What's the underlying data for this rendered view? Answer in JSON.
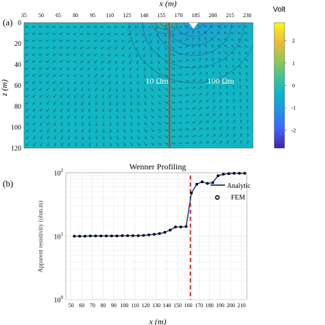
{
  "chart_data": [
    {
      "type": "heatmap",
      "panel_label": "(a)",
      "xlabel": "x (m)",
      "ylabel": "z (m)",
      "x_ticks": [
        35,
        50,
        65,
        80,
        95,
        110,
        125,
        140,
        155,
        170,
        185,
        200,
        215,
        230
      ],
      "xlim": [
        35,
        235
      ],
      "y_ticks": [
        0,
        20,
        40,
        60,
        80,
        100,
        120
      ],
      "ylim": [
        0,
        120
      ],
      "y_inverted": true,
      "colorbar": {
        "label": "Volt",
        "ticks": [
          2,
          1,
          0,
          -1,
          -2
        ],
        "range": [
          -2.8,
          2.8
        ],
        "colormap": "parula"
      },
      "region_labels": [
        "10 Ωm",
        "100 Ωm"
      ],
      "boundary_x": 162,
      "sources": [
        {
          "x": 158,
          "z": 0,
          "sign": "positive"
        },
        {
          "x": 183,
          "z": 0,
          "sign": "negative"
        }
      ]
    },
    {
      "type": "line",
      "panel_label": "(b)",
      "title": "Wenner Profiling",
      "xlabel": "x (m)",
      "ylabel": "Apparent resistivity (ohm.m)",
      "y_scale": "log",
      "x_ticks": [
        50,
        60,
        70,
        80,
        90,
        100,
        110,
        120,
        130,
        140,
        150,
        160,
        170,
        180,
        190,
        200,
        210
      ],
      "xlim": [
        45,
        215
      ],
      "y_ticks": [
        "10^0",
        "10^1",
        "10^2"
      ],
      "ylim": [
        1,
        100
      ],
      "boundary_x": 162,
      "legend": [
        "Analytic",
        "FEM"
      ],
      "legend_position": "top-right",
      "series": [
        {
          "name": "Analytic",
          "color": "#1f3fa0",
          "x": [
            53,
            58,
            63,
            68,
            73,
            78,
            83,
            88,
            93,
            98,
            103,
            108,
            113,
            118,
            123,
            128,
            133,
            138,
            143,
            148,
            153,
            158,
            163,
            168,
            173,
            178,
            183,
            188,
            193,
            198,
            203,
            208,
            213
          ],
          "y": [
            10,
            10,
            10,
            10.1,
            10.1,
            10.1,
            10.1,
            10.1,
            10.1,
            10.2,
            10.2,
            10.2,
            10.2,
            10.3,
            10.5,
            10.7,
            11,
            11.5,
            12.5,
            14,
            14,
            14.2,
            48,
            66,
            72,
            68,
            70,
            90,
            95,
            97,
            98,
            98,
            98
          ]
        },
        {
          "name": "FEM",
          "color": "#000000",
          "x": [
            53,
            58,
            63,
            68,
            73,
            78,
            83,
            88,
            93,
            98,
            103,
            108,
            113,
            118,
            123,
            128,
            133,
            138,
            143,
            148,
            153,
            158,
            163,
            168,
            173,
            178,
            183,
            188,
            193,
            198,
            203,
            208,
            213
          ],
          "y": [
            10,
            10,
            10,
            10.1,
            10.1,
            10.1,
            10.1,
            10.1,
            10.1,
            10.2,
            10.2,
            10.2,
            10.2,
            10.3,
            10.5,
            10.7,
            11,
            11.5,
            12.5,
            14,
            14,
            14.2,
            48,
            66,
            72,
            68,
            70,
            90,
            95,
            97,
            98,
            98,
            98
          ]
        }
      ]
    }
  ]
}
